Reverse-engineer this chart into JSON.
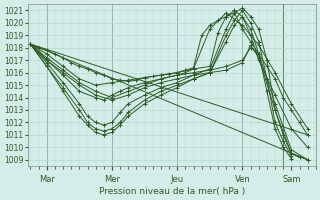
{
  "bg_color": "#d4ede8",
  "grid_color": "#b8d8d0",
  "line_color": "#2d5a27",
  "marker": "+",
  "markersize": 3,
  "linewidth": 0.7,
  "xlabel_text": "Pression niveau de la mer( hPa )",
  "ylim": [
    1008.5,
    1021.5
  ],
  "yticks": [
    1009,
    1010,
    1011,
    1012,
    1013,
    1014,
    1015,
    1016,
    1017,
    1018,
    1019,
    1020,
    1021
  ],
  "xlim": [
    -2,
    210
  ],
  "xtick_positions": [
    12,
    60,
    108,
    156,
    192
  ],
  "xtick_labels": [
    "Mar",
    "Mer",
    "Jeu",
    "Ven",
    "Sam"
  ],
  "vlines": [
    12,
    60,
    108,
    156,
    186
  ],
  "series": [
    [
      0,
      1018.3,
      6,
      1018.0,
      12,
      1017.8,
      18,
      1017.5,
      24,
      1017.2,
      30,
      1016.8,
      36,
      1016.5,
      42,
      1016.3,
      48,
      1016.0,
      54,
      1015.8,
      60,
      1015.5,
      66,
      1015.4,
      72,
      1015.3,
      78,
      1015.4,
      84,
      1015.6,
      90,
      1015.7,
      96,
      1015.8,
      102,
      1015.9,
      108,
      1016.0,
      114,
      1016.2,
      120,
      1016.4,
      126,
      1019.0,
      132,
      1019.8,
      138,
      1020.2,
      144,
      1020.5,
      150,
      1020.8,
      156,
      1019.5,
      162,
      1018.5,
      168,
      1017.5,
      174,
      1016.5,
      180,
      1015.5,
      186,
      1014.0,
      192,
      1013.0,
      198,
      1012.0,
      204,
      1011.0
    ],
    [
      0,
      1018.3,
      12,
      1017.5,
      24,
      1016.5,
      36,
      1015.5,
      48,
      1015.0,
      60,
      1015.2,
      72,
      1015.4,
      84,
      1015.6,
      96,
      1015.8,
      108,
      1016.0,
      120,
      1016.3,
      132,
      1019.5,
      144,
      1020.8,
      156,
      1019.8,
      168,
      1018.2,
      180,
      1016.0,
      192,
      1013.5,
      204,
      1011.5
    ],
    [
      0,
      1018.3,
      12,
      1017.0,
      24,
      1015.8,
      36,
      1014.5,
      48,
      1014.0,
      54,
      1013.8,
      60,
      1014.2,
      66,
      1014.5,
      72,
      1014.8,
      84,
      1015.2,
      96,
      1015.5,
      108,
      1015.8,
      114,
      1016.0,
      120,
      1016.3,
      132,
      1016.5,
      138,
      1019.2,
      144,
      1020.5,
      150,
      1021.0,
      156,
      1020.5,
      162,
      1019.0,
      168,
      1017.0,
      180,
      1014.2,
      192,
      1011.5,
      204,
      1010.0
    ],
    [
      0,
      1018.3,
      12,
      1016.8,
      24,
      1015.2,
      36,
      1013.5,
      42,
      1012.5,
      48,
      1012.0,
      54,
      1011.8,
      60,
      1012.0,
      66,
      1012.8,
      72,
      1013.5,
      84,
      1014.2,
      96,
      1014.8,
      108,
      1015.2,
      120,
      1015.8,
      132,
      1016.3,
      144,
      1019.5,
      150,
      1020.8,
      156,
      1021.2,
      162,
      1020.5,
      168,
      1019.5,
      174,
      1017.0,
      180,
      1013.0,
      186,
      1011.0,
      192,
      1009.5,
      198,
      1009.2
    ],
    [
      0,
      1018.3,
      12,
      1016.5,
      24,
      1014.8,
      36,
      1013.0,
      42,
      1012.0,
      48,
      1011.5,
      54,
      1011.3,
      60,
      1011.5,
      66,
      1012.0,
      72,
      1012.8,
      84,
      1013.8,
      96,
      1014.5,
      108,
      1015.0,
      120,
      1015.5,
      132,
      1016.0,
      144,
      1019.0,
      150,
      1020.2,
      156,
      1021.0,
      162,
      1020.0,
      168,
      1018.5,
      174,
      1015.5,
      180,
      1012.0,
      186,
      1010.5,
      192,
      1009.3
    ],
    [
      0,
      1018.3,
      12,
      1016.5,
      24,
      1014.5,
      36,
      1012.5,
      42,
      1011.8,
      48,
      1011.2,
      54,
      1011.0,
      60,
      1011.2,
      66,
      1011.8,
      72,
      1012.5,
      84,
      1013.5,
      96,
      1014.2,
      108,
      1014.8,
      120,
      1015.5,
      132,
      1016.0,
      144,
      1018.5,
      150,
      1019.8,
      156,
      1020.5,
      162,
      1019.5,
      168,
      1017.5,
      174,
      1014.5,
      180,
      1011.5,
      186,
      1010.0,
      192,
      1009.1
    ],
    [
      0,
      1018.3,
      204,
      1009.0
    ],
    [
      0,
      1018.3,
      204,
      1011.0
    ],
    [
      0,
      1018.3,
      12,
      1017.2,
      24,
      1016.2,
      36,
      1015.2,
      48,
      1014.5,
      60,
      1014.0,
      72,
      1014.5,
      84,
      1015.0,
      96,
      1015.5,
      108,
      1015.8,
      120,
      1016.0,
      132,
      1016.2,
      144,
      1016.5,
      156,
      1017.0,
      162,
      1018.0,
      168,
      1017.5,
      180,
      1013.5,
      192,
      1009.8,
      204,
      1009.0
    ],
    [
      0,
      1018.3,
      12,
      1017.0,
      24,
      1016.0,
      36,
      1015.0,
      48,
      1014.2,
      60,
      1013.8,
      72,
      1014.2,
      84,
      1014.8,
      96,
      1015.2,
      108,
      1015.5,
      120,
      1015.8,
      132,
      1016.0,
      144,
      1016.2,
      156,
      1016.8,
      162,
      1018.2,
      168,
      1017.2,
      180,
      1013.0,
      192,
      1009.5,
      204,
      1009.0
    ]
  ]
}
